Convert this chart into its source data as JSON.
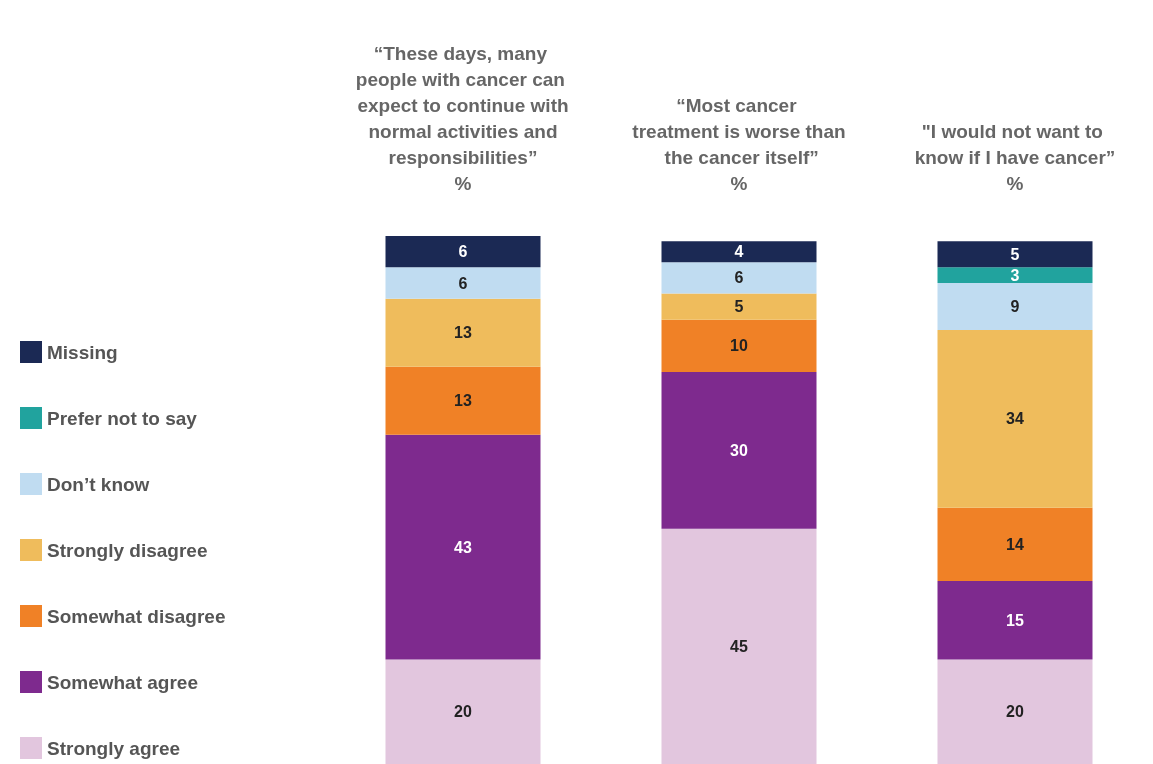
{
  "chart_data": {
    "type": "bar",
    "stacked": true,
    "data_labels": true,
    "legend": "left",
    "tick_labels": "x",
    "categories": [
      "“These days, many people with cancer can expect to continue with normal activities and responsibilities”\n%",
      "“Most cancer treatment is worse than the cancer itself”\n%",
      "\"I would not want to know if I have cancer”\n%"
    ],
    "series": [
      {
        "name": "Strongly agree",
        "color": "#e2c6de",
        "values": [
          20,
          45,
          20
        ]
      },
      {
        "name": "Somewhat agree",
        "color": "#7e2a8e",
        "values": [
          43,
          30,
          15
        ]
      },
      {
        "name": "Somewhat disagree",
        "color": "#f08126",
        "values": [
          13,
          10,
          14
        ]
      },
      {
        "name": "Strongly disagree",
        "color": "#efbc5c",
        "values": [
          13,
          5,
          34
        ]
      },
      {
        "name": "Don’t know",
        "color": "#c0dcf1",
        "values": [
          6,
          6,
          9
        ]
      },
      {
        "name": "Prefer not to say",
        "color": "#21a39e",
        "values": [
          null,
          null,
          3
        ]
      },
      {
        "name": "Missing",
        "color": "#1b2954",
        "values": [
          6,
          4,
          5
        ]
      }
    ]
  }
}
